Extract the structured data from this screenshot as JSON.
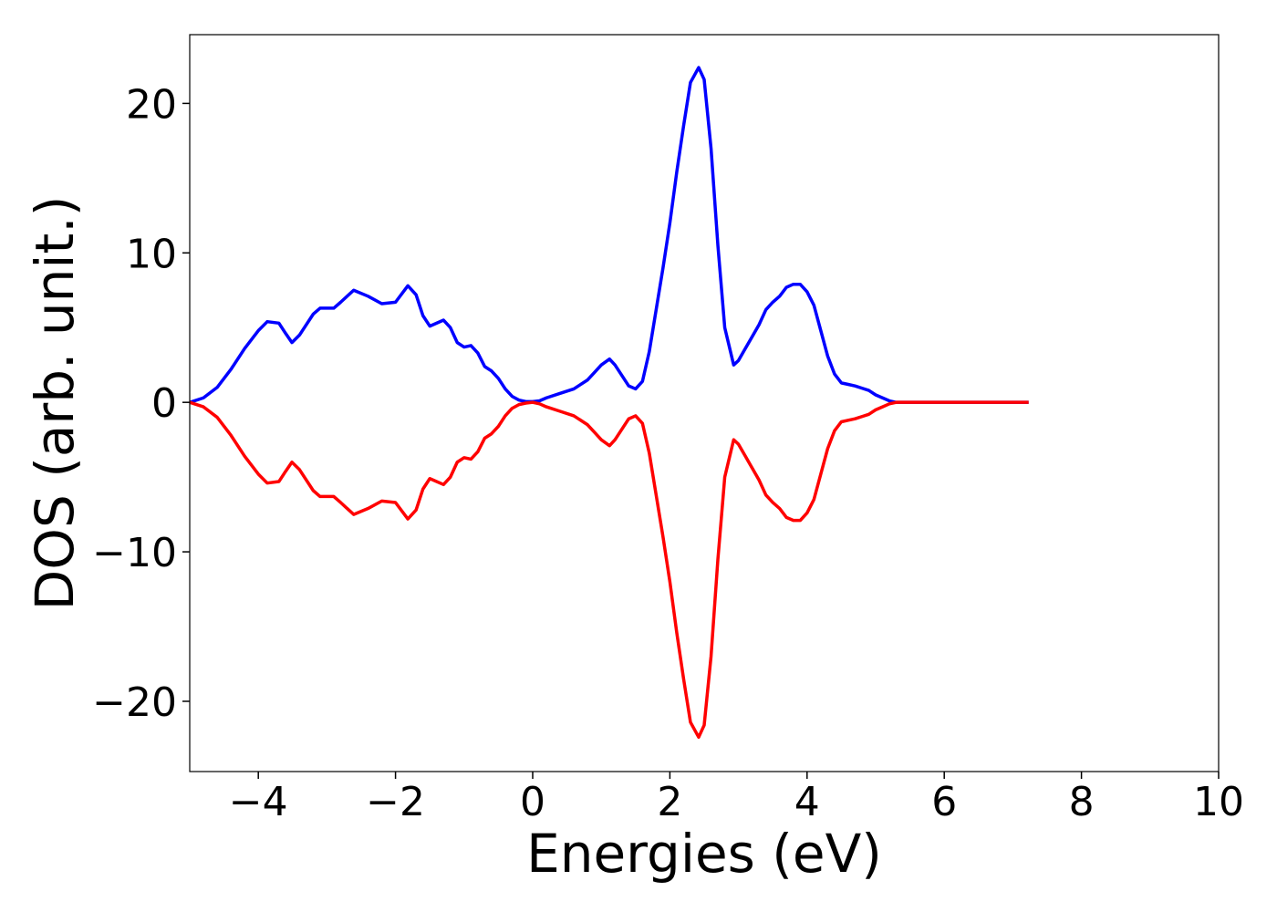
{
  "chart_data": {
    "type": "line",
    "xlabel": "Energies (eV)",
    "ylabel": "DOS (arb. unit.)",
    "x": [
      -5.0,
      -4.8,
      -4.6,
      -4.4,
      -4.2,
      -4.0,
      -3.87,
      -3.7,
      -3.6,
      -3.51,
      -3.4,
      -3.2,
      -3.1,
      -2.9,
      -2.8,
      -2.61,
      -2.4,
      -2.2,
      -2.0,
      -1.82,
      -1.7,
      -1.6,
      -1.5,
      -1.3,
      -1.2,
      -1.1,
      -1.0,
      -0.9,
      -0.8,
      -0.7,
      -0.6,
      -0.5,
      -0.4,
      -0.3,
      -0.2,
      -0.1,
      0.0,
      0.1,
      0.2,
      0.4,
      0.6,
      0.8,
      0.9,
      1.0,
      1.12,
      1.2,
      1.3,
      1.4,
      1.5,
      1.6,
      1.7,
      1.8,
      1.9,
      2.0,
      2.1,
      2.2,
      2.3,
      2.42,
      2.5,
      2.6,
      2.7,
      2.8,
      2.93,
      3.0,
      3.1,
      3.2,
      3.3,
      3.4,
      3.5,
      3.6,
      3.7,
      3.8,
      3.9,
      4.0,
      4.1,
      4.2,
      4.3,
      4.4,
      4.5,
      4.6,
      4.7,
      4.8,
      4.9,
      5.0,
      5.1,
      5.2,
      5.3,
      7.23
    ],
    "series": [
      {
        "color": "#0000ff",
        "values": [
          0,
          0.3,
          1.0,
          2.2,
          3.6,
          4.8,
          5.4,
          5.3,
          4.6,
          4.0,
          4.5,
          5.9,
          6.3,
          6.3,
          6.7,
          7.5,
          7.1,
          6.6,
          6.7,
          7.8,
          7.2,
          5.8,
          5.1,
          5.5,
          5.0,
          4.0,
          3.7,
          3.8,
          3.3,
          2.4,
          2.1,
          1.6,
          0.9,
          0.4,
          0.15,
          0.05,
          0.05,
          0.1,
          0.3,
          0.6,
          0.9,
          1.5,
          2.0,
          2.5,
          2.9,
          2.5,
          1.8,
          1.1,
          0.9,
          1.4,
          3.4,
          6.2,
          9.0,
          12.0,
          15.4,
          18.5,
          21.4,
          22.4,
          21.6,
          17.0,
          10.5,
          5.0,
          2.5,
          2.8,
          3.6,
          4.4,
          5.2,
          6.2,
          6.7,
          7.1,
          7.7,
          7.9,
          7.9,
          7.4,
          6.5,
          4.8,
          3.1,
          1.9,
          1.3,
          1.2,
          1.1,
          0.95,
          0.8,
          0.5,
          0.3,
          0.1,
          0,
          0
        ]
      },
      {
        "color": "#ff0000",
        "values": [
          0,
          -0.3,
          -1.0,
          -2.2,
          -3.6,
          -4.8,
          -5.4,
          -5.3,
          -4.6,
          -4.0,
          -4.5,
          -5.9,
          -6.3,
          -6.3,
          -6.7,
          -7.5,
          -7.1,
          -6.6,
          -6.7,
          -7.8,
          -7.2,
          -5.8,
          -5.1,
          -5.5,
          -5.0,
          -4.0,
          -3.7,
          -3.8,
          -3.3,
          -2.4,
          -2.1,
          -1.6,
          -0.9,
          -0.4,
          -0.15,
          -0.05,
          0,
          -0.1,
          -0.3,
          -0.6,
          -0.9,
          -1.5,
          -2.0,
          -2.5,
          -2.9,
          -2.5,
          -1.8,
          -1.1,
          -0.9,
          -1.4,
          -3.4,
          -6.2,
          -9.0,
          -12.0,
          -15.4,
          -18.5,
          -21.4,
          -22.4,
          -21.6,
          -17.0,
          -10.5,
          -5.0,
          -2.5,
          -2.8,
          -3.6,
          -4.4,
          -5.2,
          -6.2,
          -6.7,
          -7.1,
          -7.7,
          -7.9,
          -7.9,
          -7.4,
          -6.5,
          -4.8,
          -3.1,
          -1.9,
          -1.3,
          -1.2,
          -1.1,
          -0.95,
          -0.8,
          -0.5,
          -0.3,
          -0.1,
          0,
          0
        ]
      }
    ],
    "xlim": [
      -5,
      10
    ],
    "xticks": [
      {
        "value": -4,
        "label": "−4"
      },
      {
        "value": -2,
        "label": "−2"
      },
      0,
      2,
      4,
      6,
      8,
      10
    ],
    "ylim": [
      -24.7,
      24.6
    ],
    "yticks": [
      {
        "value": -20,
        "label": "−20"
      },
      {
        "value": -10,
        "label": "−10"
      },
      0,
      10,
      20
    ]
  }
}
